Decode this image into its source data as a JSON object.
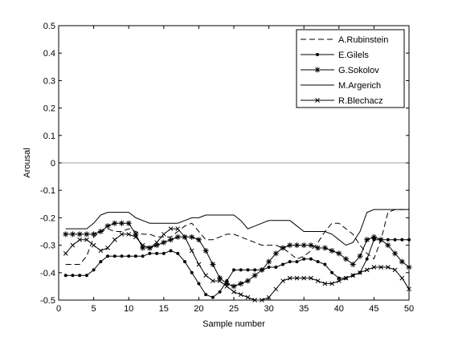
{
  "chart_data": {
    "type": "line",
    "title": "",
    "xlabel": "Sample number",
    "ylabel": "Arousal",
    "xlim": [
      0,
      50
    ],
    "ylim": [
      -0.5,
      0.5
    ],
    "xticks": [
      0,
      5,
      10,
      15,
      20,
      25,
      30,
      35,
      40,
      45,
      50
    ],
    "yticks": [
      0.5,
      0.4,
      0.3,
      0.2,
      0.1,
      0,
      -0.1,
      -0.2,
      -0.3,
      -0.4,
      -0.5
    ],
    "xtick_labels": [
      "0",
      "5",
      "10",
      "15",
      "20",
      "25",
      "30",
      "35",
      "40",
      "45",
      "50"
    ],
    "ytick_labels": [
      "0.5",
      "0.4",
      "0.3",
      "0.2",
      "0.1",
      "0",
      "-0.1",
      "-0.2",
      "-0.3",
      "-0.4",
      "-0.5"
    ],
    "grid": false,
    "zero_line": true,
    "legend_position": "top-right",
    "series": [
      {
        "name": "A.Rubinstein",
        "style": "dashed",
        "marker": "none",
        "x": [
          1,
          2,
          3,
          4,
          5,
          6,
          7,
          8,
          9,
          10,
          11,
          12,
          13,
          14,
          15,
          16,
          17,
          18,
          19,
          20,
          21,
          22,
          23,
          24,
          25,
          26,
          27,
          28,
          29,
          30,
          31,
          32,
          33,
          34,
          35,
          36,
          37,
          38,
          39,
          40,
          41,
          42,
          43,
          44,
          45,
          46,
          47,
          48,
          49,
          50
        ],
        "y": [
          -0.37,
          -0.37,
          -0.37,
          -0.34,
          -0.27,
          -0.25,
          -0.24,
          -0.25,
          -0.25,
          -0.24,
          -0.25,
          -0.26,
          -0.26,
          -0.27,
          -0.27,
          -0.27,
          -0.25,
          -0.23,
          -0.22,
          -0.25,
          -0.28,
          -0.28,
          -0.27,
          -0.26,
          -0.26,
          -0.27,
          -0.28,
          -0.29,
          -0.3,
          -0.3,
          -0.3,
          -0.31,
          -0.33,
          -0.35,
          -0.34,
          -0.32,
          -0.29,
          -0.25,
          -0.22,
          -0.22,
          -0.24,
          -0.26,
          -0.3,
          -0.33,
          -0.35,
          -0.28,
          -0.18,
          -0.17,
          -0.17,
          -0.17
        ]
      },
      {
        "name": "E.Gilels",
        "style": "solid",
        "marker": "dot",
        "x": [
          1,
          2,
          3,
          4,
          5,
          6,
          7,
          8,
          9,
          10,
          11,
          12,
          13,
          14,
          15,
          16,
          17,
          18,
          19,
          20,
          21,
          22,
          23,
          24,
          25,
          26,
          27,
          28,
          29,
          30,
          31,
          32,
          33,
          34,
          35,
          36,
          37,
          38,
          39,
          40,
          41,
          42,
          43,
          44,
          45,
          46,
          47,
          48,
          49,
          50
        ],
        "y": [
          -0.41,
          -0.41,
          -0.41,
          -0.41,
          -0.39,
          -0.36,
          -0.34,
          -0.34,
          -0.34,
          -0.34,
          -0.34,
          -0.34,
          -0.33,
          -0.33,
          -0.33,
          -0.32,
          -0.33,
          -0.36,
          -0.4,
          -0.44,
          -0.48,
          -0.49,
          -0.47,
          -0.43,
          -0.39,
          -0.39,
          -0.39,
          -0.39,
          -0.39,
          -0.38,
          -0.38,
          -0.37,
          -0.36,
          -0.36,
          -0.35,
          -0.35,
          -0.36,
          -0.37,
          -0.4,
          -0.42,
          -0.42,
          -0.41,
          -0.4,
          -0.35,
          -0.28,
          -0.28,
          -0.28,
          -0.28,
          -0.28,
          -0.28
        ]
      },
      {
        "name": "G.Sokolov",
        "style": "solid",
        "marker": "star",
        "x": [
          1,
          2,
          3,
          4,
          5,
          6,
          7,
          8,
          9,
          10,
          11,
          12,
          13,
          14,
          15,
          16,
          17,
          18,
          19,
          20,
          21,
          22,
          23,
          24,
          25,
          26,
          27,
          28,
          29,
          30,
          31,
          32,
          33,
          34,
          35,
          36,
          37,
          38,
          39,
          40,
          41,
          42,
          43,
          44,
          45,
          46,
          47,
          48,
          49,
          50
        ],
        "y": [
          -0.26,
          -0.26,
          -0.26,
          -0.26,
          -0.26,
          -0.25,
          -0.23,
          -0.22,
          -0.22,
          -0.22,
          -0.26,
          -0.31,
          -0.31,
          -0.3,
          -0.29,
          -0.28,
          -0.27,
          -0.27,
          -0.27,
          -0.28,
          -0.32,
          -0.37,
          -0.42,
          -0.44,
          -0.45,
          -0.44,
          -0.43,
          -0.41,
          -0.39,
          -0.36,
          -0.33,
          -0.31,
          -0.3,
          -0.3,
          -0.3,
          -0.3,
          -0.31,
          -0.31,
          -0.32,
          -0.33,
          -0.35,
          -0.37,
          -0.34,
          -0.28,
          -0.27,
          -0.28,
          -0.3,
          -0.33,
          -0.36,
          -0.38
        ]
      },
      {
        "name": "M.Argerich",
        "style": "solid",
        "marker": "none",
        "x": [
          1,
          2,
          3,
          4,
          5,
          6,
          7,
          8,
          9,
          10,
          11,
          12,
          13,
          14,
          15,
          16,
          17,
          18,
          19,
          20,
          21,
          22,
          23,
          24,
          25,
          26,
          27,
          28,
          29,
          30,
          31,
          32,
          33,
          34,
          35,
          36,
          37,
          38,
          39,
          40,
          41,
          42,
          43,
          44,
          45,
          46,
          47,
          48,
          49,
          50
        ],
        "y": [
          -0.24,
          -0.24,
          -0.24,
          -0.24,
          -0.22,
          -0.19,
          -0.18,
          -0.18,
          -0.18,
          -0.18,
          -0.2,
          -0.21,
          -0.22,
          -0.22,
          -0.22,
          -0.22,
          -0.22,
          -0.21,
          -0.2,
          -0.2,
          -0.19,
          -0.19,
          -0.19,
          -0.19,
          -0.19,
          -0.21,
          -0.24,
          -0.23,
          -0.22,
          -0.21,
          -0.21,
          -0.21,
          -0.21,
          -0.23,
          -0.25,
          -0.25,
          -0.25,
          -0.25,
          -0.26,
          -0.28,
          -0.3,
          -0.29,
          -0.25,
          -0.18,
          -0.17,
          -0.17,
          -0.17,
          -0.17,
          -0.17,
          -0.17
        ]
      },
      {
        "name": "R.Blechacz",
        "style": "solid",
        "marker": "x",
        "x": [
          1,
          2,
          3,
          4,
          5,
          6,
          7,
          8,
          9,
          10,
          11,
          12,
          13,
          14,
          15,
          16,
          17,
          18,
          19,
          20,
          21,
          22,
          23,
          24,
          25,
          26,
          27,
          28,
          29,
          30,
          31,
          32,
          33,
          34,
          35,
          36,
          37,
          38,
          39,
          40,
          41,
          42,
          43,
          44,
          45,
          46,
          47,
          48,
          49,
          50
        ],
        "y": [
          -0.33,
          -0.3,
          -0.28,
          -0.28,
          -0.3,
          -0.32,
          -0.31,
          -0.28,
          -0.26,
          -0.26,
          -0.27,
          -0.3,
          -0.31,
          -0.29,
          -0.26,
          -0.24,
          -0.24,
          -0.27,
          -0.32,
          -0.37,
          -0.41,
          -0.43,
          -0.43,
          -0.45,
          -0.47,
          -0.48,
          -0.49,
          -0.5,
          -0.5,
          -0.49,
          -0.46,
          -0.43,
          -0.42,
          -0.42,
          -0.42,
          -0.42,
          -0.43,
          -0.44,
          -0.44,
          -0.43,
          -0.42,
          -0.41,
          -0.4,
          -0.39,
          -0.38,
          -0.38,
          -0.38,
          -0.39,
          -0.42,
          -0.46
        ]
      }
    ]
  }
}
